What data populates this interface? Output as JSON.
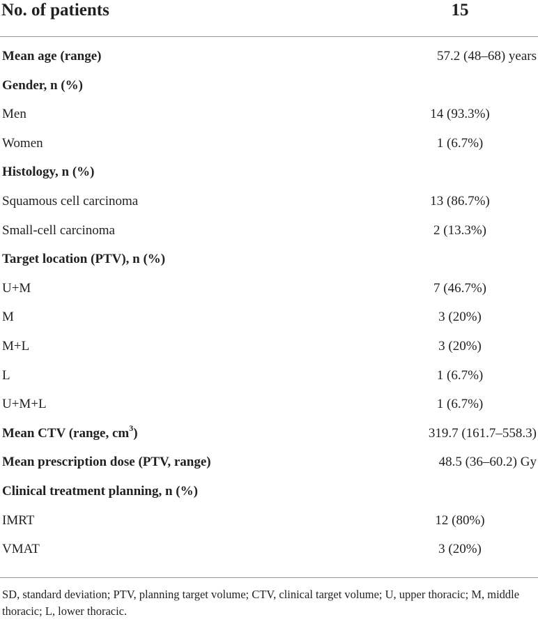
{
  "header": {
    "label": "No. of patients",
    "value": "15"
  },
  "rows": [
    {
      "label": "Mean age (range)",
      "value": "57.2 (48–68) years",
      "bold": true
    },
    {
      "label": "Gender, n (%)",
      "value": "",
      "bold": true
    },
    {
      "label": "Men",
      "value": "14 (93.3%)",
      "bold": false
    },
    {
      "label": "Women",
      "value": "1 (6.7%)",
      "bold": false
    },
    {
      "label": "Histology, n (%)",
      "value": "",
      "bold": true
    },
    {
      "label": "Squamous cell carcinoma",
      "value": "13 (86.7%)",
      "bold": false
    },
    {
      "label": "Small-cell carcinoma",
      "value": "2 (13.3%)",
      "bold": false
    },
    {
      "label": "Target location (PTV), n (%)",
      "value": "",
      "bold": true
    },
    {
      "label": "U+M",
      "value": "7 (46.7%)",
      "bold": false
    },
    {
      "label": "M",
      "value": "3 (20%)",
      "bold": false
    },
    {
      "label": "M+L",
      "value": "3 (20%)",
      "bold": false
    },
    {
      "label": "L",
      "value": "1 (6.7%)",
      "bold": false
    },
    {
      "label": "U+M+L",
      "value": "1 (6.7%)",
      "bold": false
    },
    {
      "label": "Mean CTV (range, cm",
      "label_sup": "3",
      "label_after": ")",
      "value": "319.7 (161.7–558.3)",
      "bold": true
    },
    {
      "label": "Mean prescription dose (PTV, range)",
      "value": "48.5 (36–60.2) Gy",
      "bold": true
    },
    {
      "label": "Clinical treatment planning, n (%)",
      "value": "",
      "bold": true
    },
    {
      "label": "IMRT",
      "value": "12 (80%)",
      "bold": false
    },
    {
      "label": "VMAT",
      "value": "3 (20%)",
      "bold": false
    }
  ],
  "footnote": "SD, standard deviation; PTV, planning target volume; CTV, clinical target volume; U, upper thoracic; M, middle thoracic; L, lower thoracic."
}
